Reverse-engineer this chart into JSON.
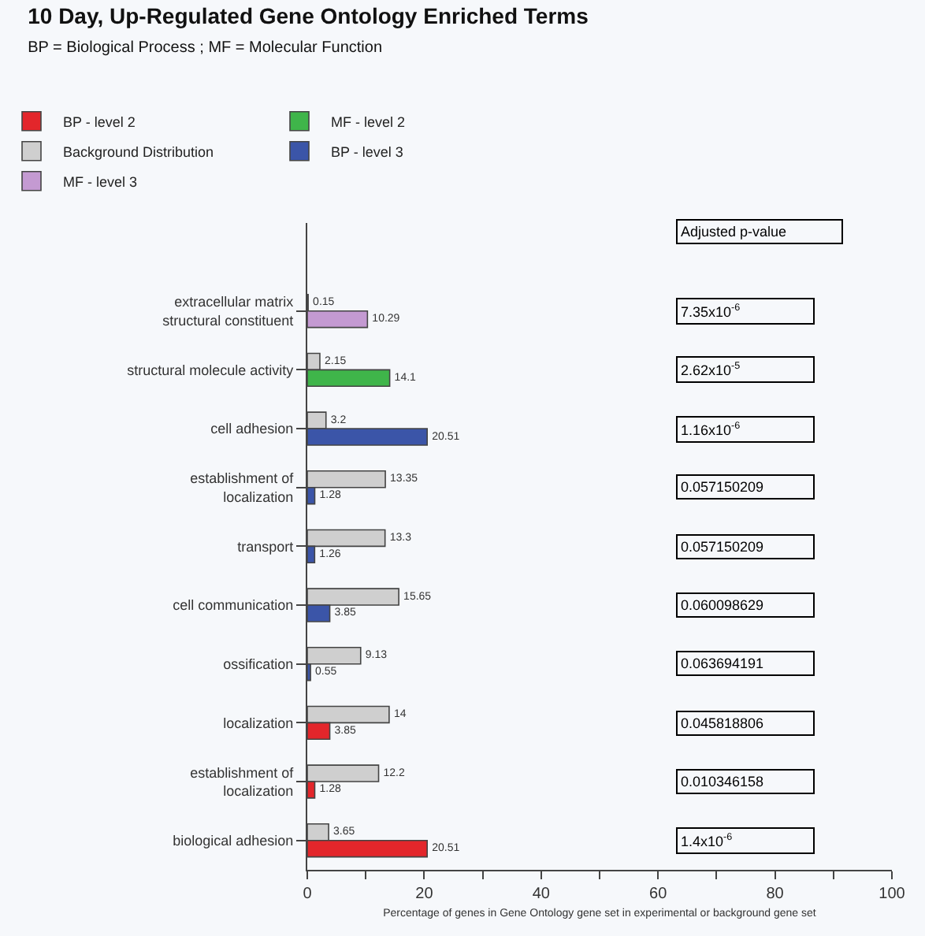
{
  "chart_data": {
    "type": "bar",
    "orientation": "horizontal",
    "title": "10 Day, Up-Regulated Gene Ontology Enriched Terms",
    "subtitle": "BP = Biological Process ; MF = Molecular Function",
    "xlabel": "Percentage of genes in Gene Ontology gene set in experimental or background gene set",
    "categories": [
      "extracellular matrix structural constituent",
      "structural molecule activity",
      "cell adhesion",
      "establishment of localization",
      "transport",
      "cell communication",
      "ossification",
      "localization",
      "establishment of localization",
      "biological adhesion"
    ],
    "series": [
      {
        "name": "Background Distribution",
        "color": "#cfcfcf",
        "values": [
          0.15,
          2.15,
          3.2,
          13.35,
          13.3,
          15.65,
          9.13,
          14,
          12.2,
          3.65
        ]
      },
      {
        "name": "BP - level 2",
        "color": "#e3262b",
        "values": [
          null,
          null,
          null,
          null,
          null,
          null,
          null,
          3.85,
          1.28,
          20.51
        ]
      },
      {
        "name": "BP - level 3",
        "color": "#3b55a8",
        "values": [
          null,
          null,
          20.51,
          1.28,
          1.26,
          3.85,
          0.55,
          null,
          null,
          null
        ]
      },
      {
        "name": "MF - level 2",
        "color": "#3fb54a",
        "values": [
          null,
          14.1,
          null,
          null,
          null,
          null,
          null,
          null,
          null,
          null
        ]
      },
      {
        "name": "MF - level 3",
        "color": "#c49ad2",
        "values": [
          10.29,
          null,
          null,
          null,
          null,
          null,
          null,
          null,
          null,
          null
        ]
      }
    ],
    "annotations": [
      "Adjusted p-value",
      "7.35x10$^{-6}$",
      "2.62x10$^{-5}$",
      "1.16x10$^{-6}$",
      "0.057150209",
      "0.057150209",
      "0.060098629",
      "0.063694191",
      "0.045818806",
      "0.010346158",
      "1.4x10$^{-6}$"
    ],
    "xlim": [
      0,
      100
    ],
    "xticks": [
      0,
      {
        "value": 10,
        "label": null
      },
      20,
      {
        "value": 30,
        "label": null
      },
      40,
      {
        "value": 50,
        "label": null
      },
      60,
      {
        "value": 70,
        "label": null
      },
      80,
      {
        "value": 90,
        "label": null
      },
      100
    ],
    "data_labels": true,
    "legend": "top left",
    "grid": false
  }
}
